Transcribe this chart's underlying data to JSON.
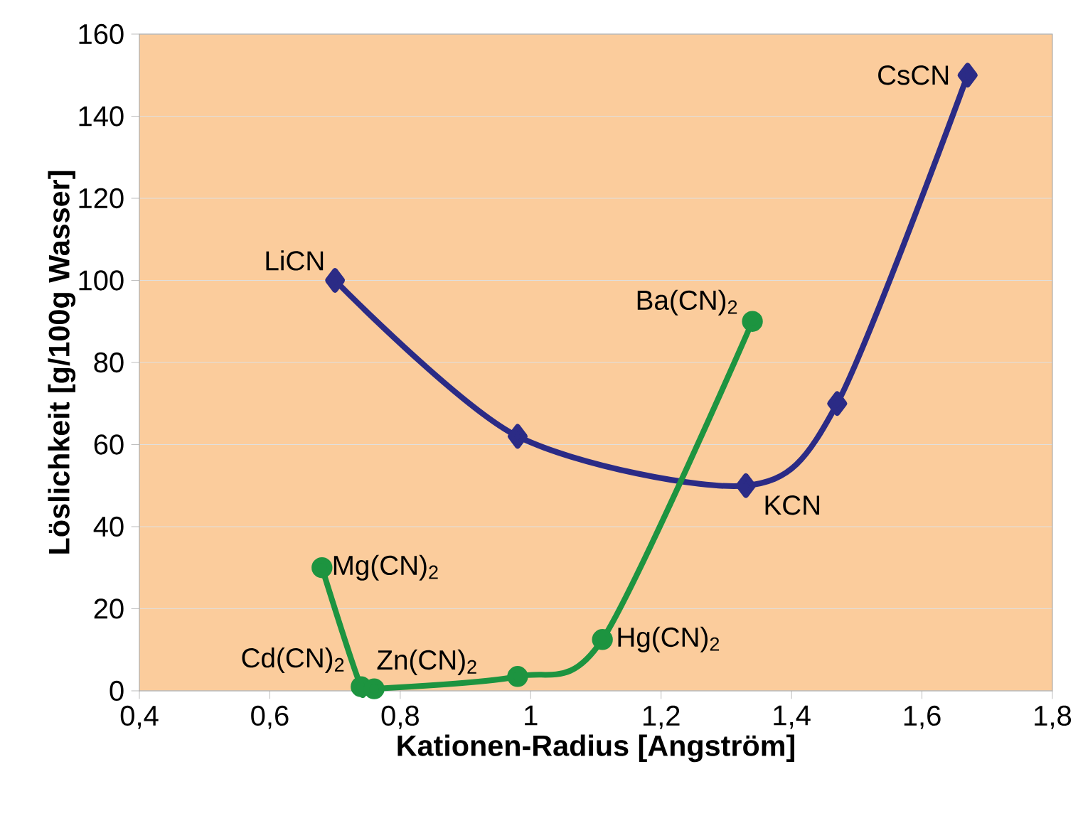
{
  "chart_data": {
    "type": "line",
    "xlabel": "Kationen-Radius [Angström]",
    "ylabel": "Löslichkeit [g/100g Wasser]",
    "xlim": [
      0.4,
      1.8
    ],
    "xticks": [
      {
        "value": 0.4,
        "label": "0,4"
      },
      {
        "value": 0.6,
        "label": "0,6"
      },
      {
        "value": 0.8,
        "label": "0,8"
      },
      {
        "value": 1,
        "label": "1"
      },
      {
        "value": 1.2,
        "label": "1,2"
      },
      {
        "value": 1.4,
        "label": "1,4"
      },
      {
        "value": 1.6,
        "label": "1,6"
      },
      {
        "value": 1.8,
        "label": "1,8"
      }
    ],
    "ylim": [
      0,
      160
    ],
    "yticks": [
      0,
      20,
      40,
      60,
      80,
      100,
      120,
      140,
      160
    ],
    "grid": "y",
    "series": [
      {
        "color": "#2b2b86",
        "marker": "diamond",
        "x": [
          0.7,
          0.98,
          1.33,
          1.47,
          1.67
        ],
        "values": [
          100,
          62,
          50,
          70,
          150
        ]
      },
      {
        "color": "#1d9440",
        "marker": "circle",
        "x": [
          0.68,
          0.74,
          0.76,
          0.98,
          1.11,
          1.34
        ],
        "values": [
          30,
          1,
          0.5,
          3.5,
          12.5,
          90
        ]
      }
    ],
    "annotations": [
      {
        "text": "LiCN",
        "x": 0.7,
        "y": 100
      },
      {
        "text": "CsCN",
        "x": 1.67,
        "y": 150
      },
      {
        "text": "KCN",
        "x": 1.33,
        "y": 50
      },
      {
        "text": "Ba(CN)$_{2}$",
        "x": 1.34,
        "y": 90
      },
      {
        "text": "Mg(CN)$_{2}$",
        "x": 0.68,
        "y": 30
      },
      {
        "text": "Cd(CN)$_{2}$",
        "x": 0.74,
        "y": 1
      },
      {
        "text": "Zn(CN)$_{2}$",
        "x": 0.76,
        "y": 0.5
      },
      {
        "text": "Hg(CN)$_{2}$",
        "x": 1.11,
        "y": 12.5
      }
    ]
  }
}
